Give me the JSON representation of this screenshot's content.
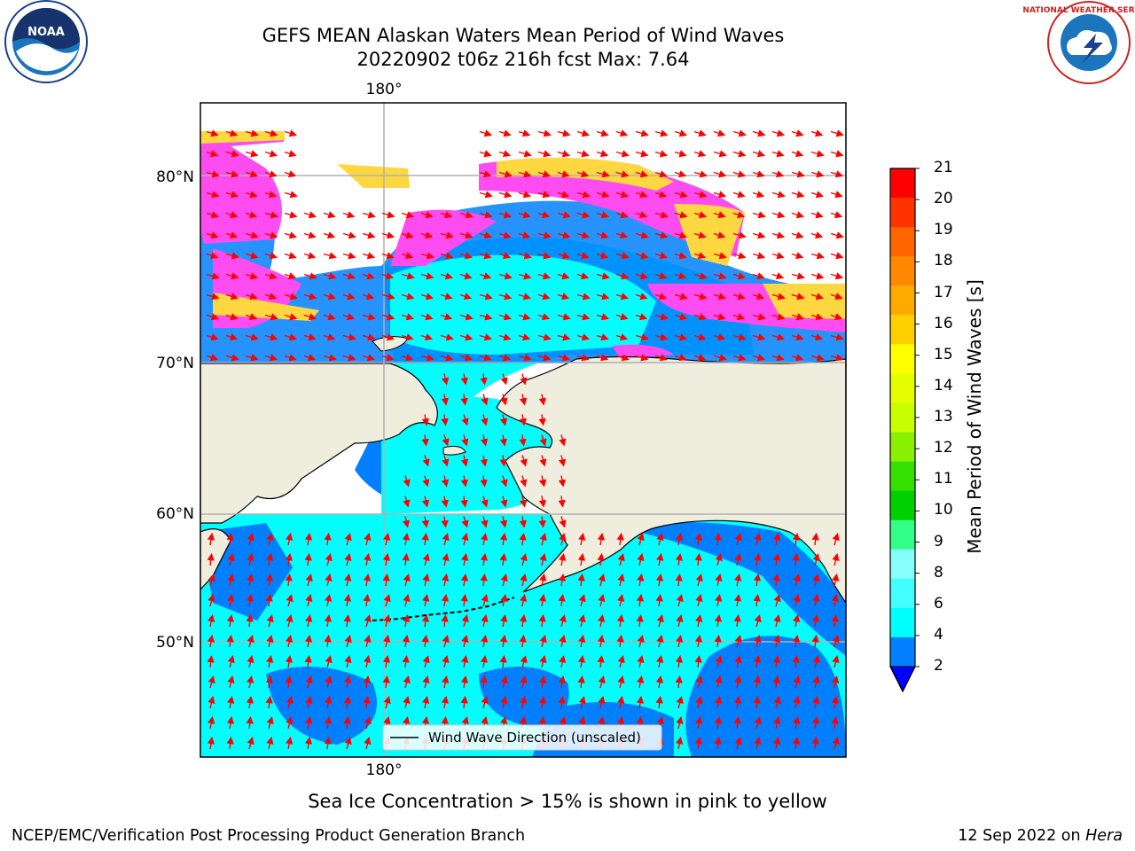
{
  "header": {
    "title_line1": "GEFS MEAN Alaskan Waters Mean Period of Wind Waves",
    "title_line2": "20220902 t06z 216h fcst   Max: 7.64"
  },
  "logos": {
    "left_text": "NOAA",
    "right_text": "NATIONAL WEATHER SERVICE"
  },
  "map": {
    "lat_labels": [
      "80°N",
      "70°N",
      "60°N",
      "50°N"
    ],
    "lon_label_top": "180°",
    "lon_label_bottom": "180°",
    "legend_label": "Wind Wave Direction (unscaled)",
    "colors": {
      "land": "#efedde",
      "water_dark": "#0080ff",
      "water_cyan": "#00ffff",
      "ice_magenta": "#ff4cf0",
      "ice_yellow": "#ffd740",
      "arrow": "#ff0000",
      "grid": "#b0b0b0"
    }
  },
  "colorbar": {
    "label": "Mean Period of Wind Waves [s]",
    "ticks": [
      "21",
      "20",
      "19",
      "18",
      "17",
      "16",
      "15",
      "14",
      "13",
      "12",
      "11",
      "10",
      "9",
      "8",
      "6",
      "4",
      "2"
    ],
    "colors": [
      "#ff0000",
      "#ff3300",
      "#ff6600",
      "#ff8800",
      "#ffaa00",
      "#ffd000",
      "#ffff00",
      "#e6ff00",
      "#c8ff00",
      "#88f000",
      "#33e000",
      "#00d000",
      "#33ff88",
      "#88ffff",
      "#44ffff",
      "#00ffff",
      "#0080ff"
    ],
    "under_color": "#0000ff"
  },
  "footer": {
    "note": "Sea Ice Concentration > 15% is shown in pink to yellow",
    "left": "NCEP/EMC/Verification Post Processing Product Generation Branch",
    "right_prefix": "12 Sep 2022 on ",
    "right_host": "Hera"
  }
}
